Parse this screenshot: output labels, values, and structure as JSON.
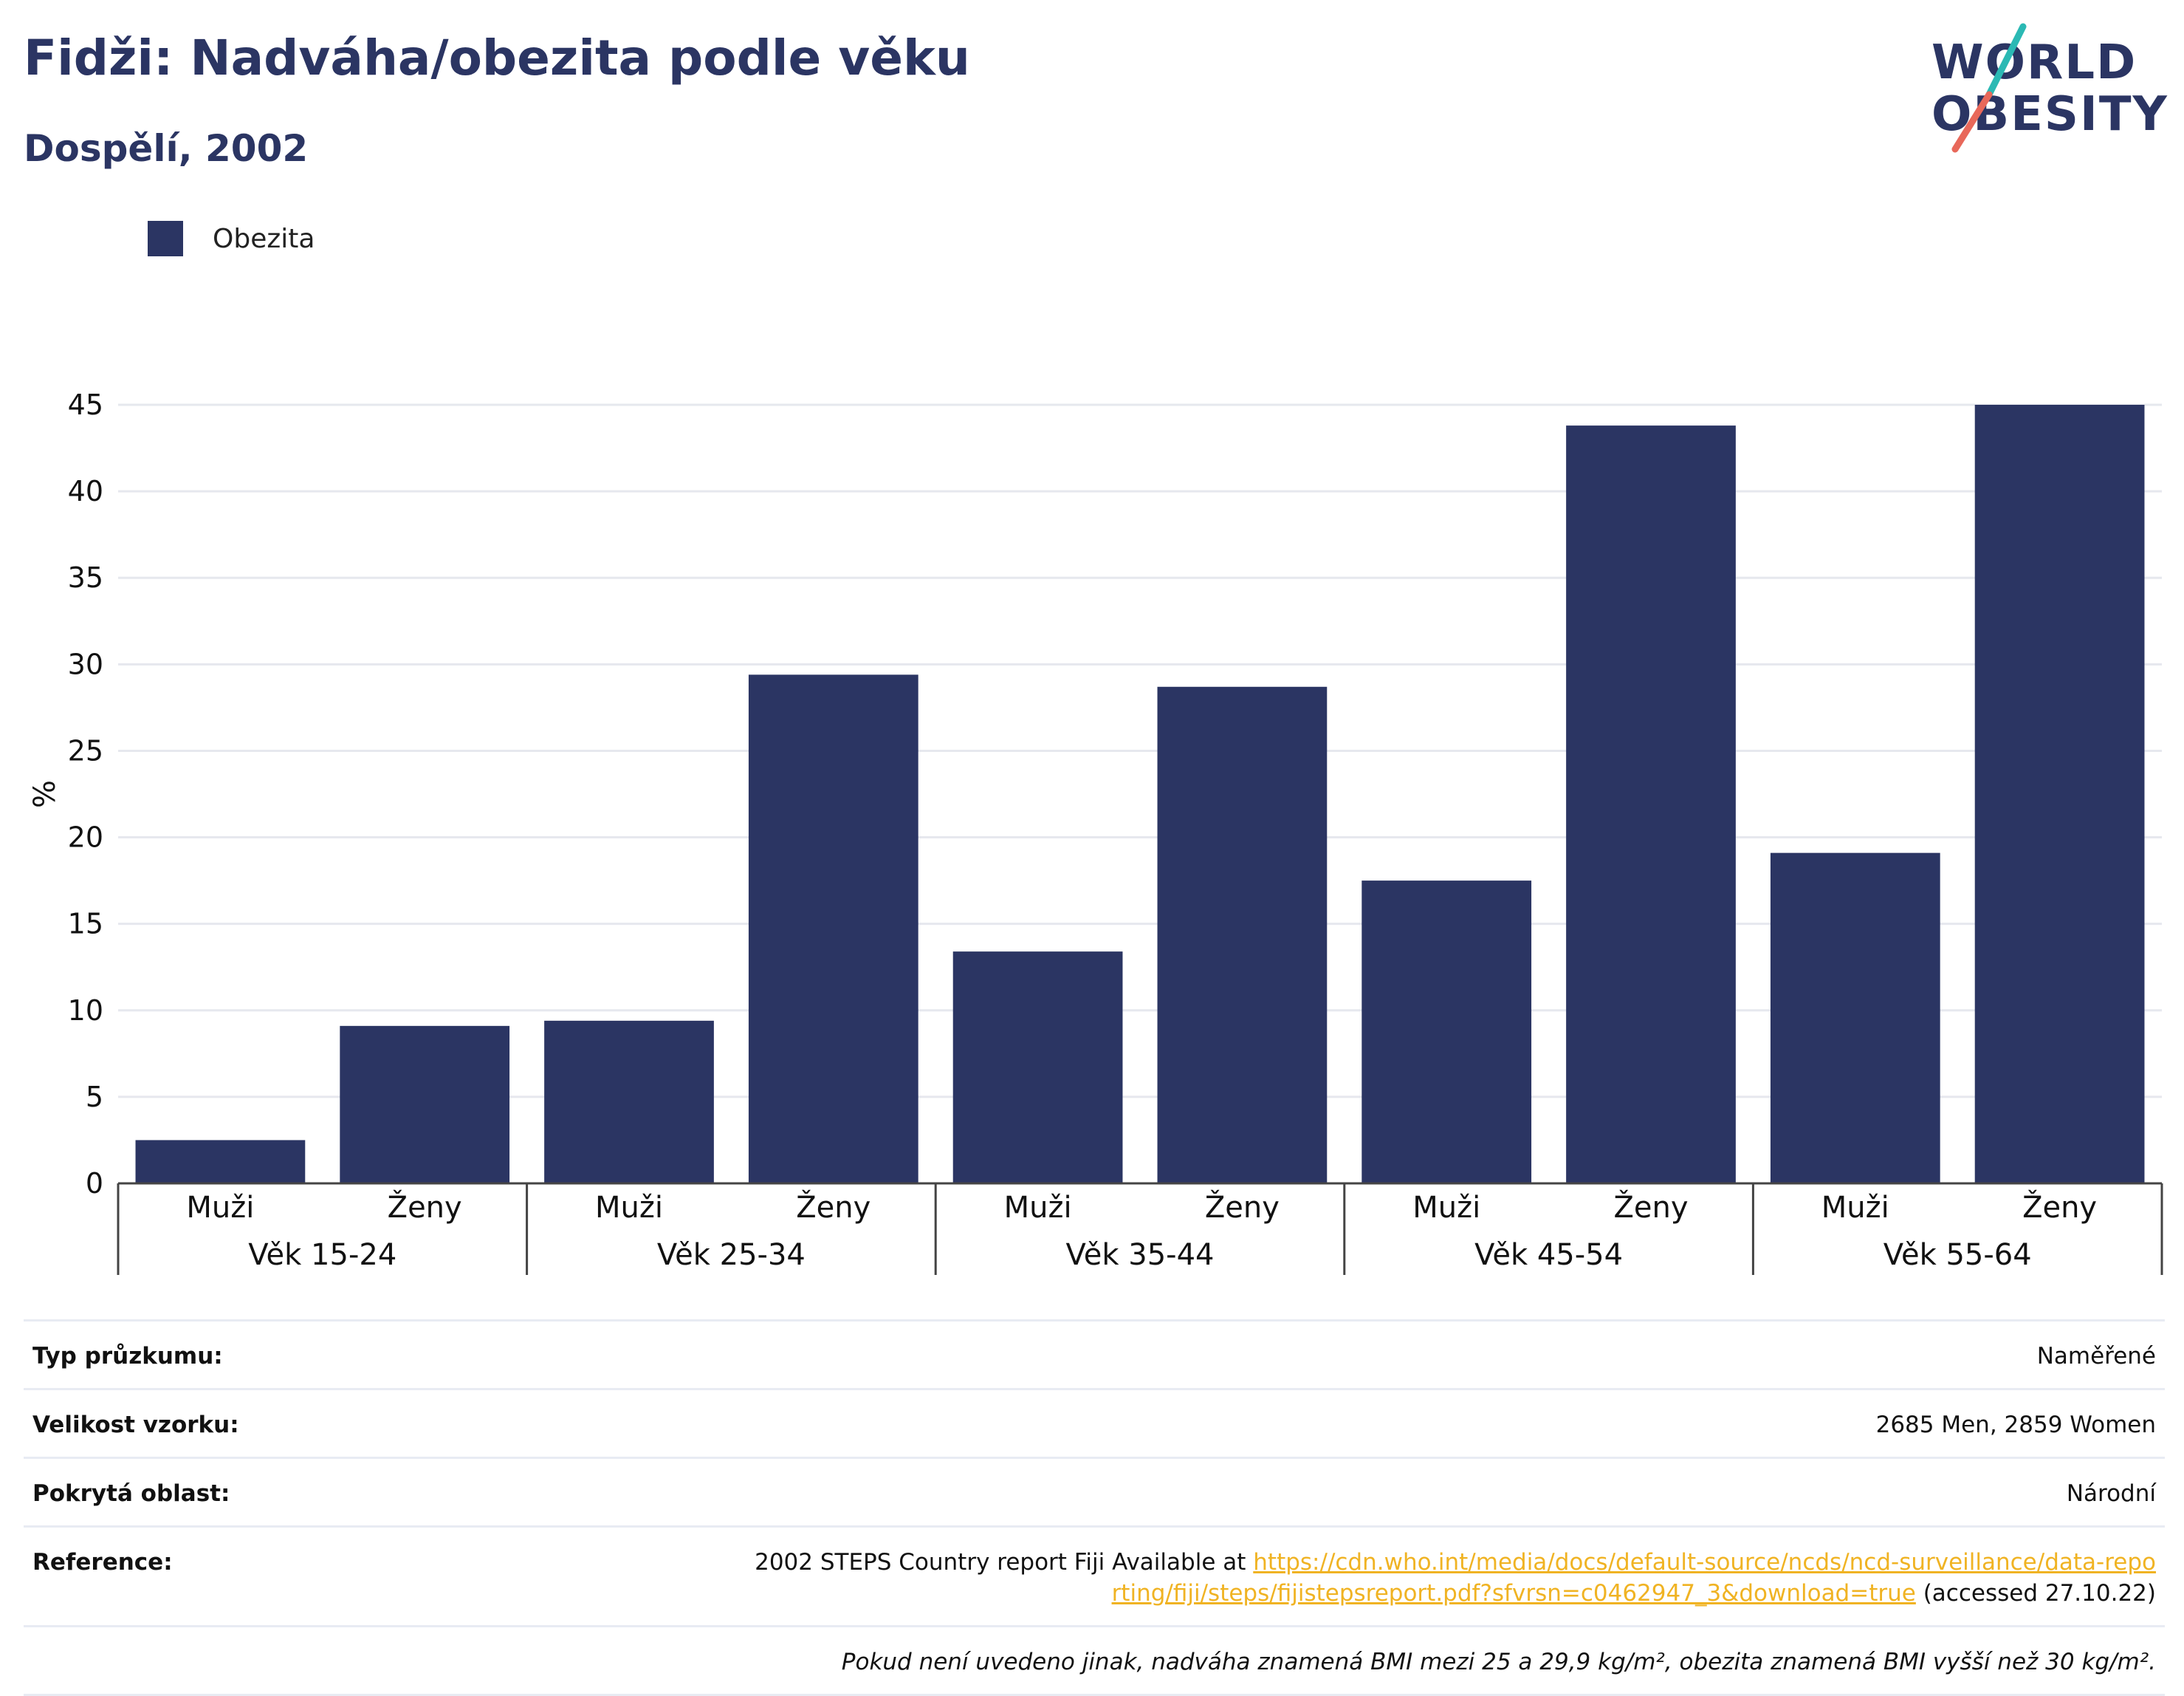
{
  "header": {
    "title": "Fidži: Nadváha/obezita podle věku",
    "subtitle": "Dospělí, 2002"
  },
  "logo": {
    "line1": "WORLD",
    "line2": "OBESITY",
    "colors": {
      "text": "#2b3563",
      "slash_top": "#2bb9b4",
      "slash_bottom": "#e8685a"
    }
  },
  "legend": {
    "label": "Obezita",
    "color": "#2b3563"
  },
  "chart_data": {
    "type": "bar",
    "ylabel": "%",
    "ylim": [
      0,
      45
    ],
    "yticks": [
      0,
      5,
      10,
      15,
      20,
      25,
      30,
      35,
      40,
      45
    ],
    "grid": true,
    "legend_position": "top-left",
    "bar_color": "#2b3563",
    "groups": [
      "Věk 15-24",
      "Věk 25-34",
      "Věk 35-44",
      "Věk 45-54",
      "Věk 55-64"
    ],
    "subcategories": [
      "Muži",
      "Ženy"
    ],
    "series": [
      {
        "name": "Obezita",
        "values": [
          2.5,
          9.1,
          9.4,
          29.4,
          13.4,
          28.7,
          17.5,
          43.8,
          19.1,
          45.0
        ]
      }
    ]
  },
  "info": {
    "rows": [
      {
        "key": "Typ průzkumu:",
        "value": "Naměřené"
      },
      {
        "key": "Velikost vzorku:",
        "value": "2685 Men, 2859 Women"
      },
      {
        "key": "Pokrytá oblast:",
        "value": "Národní"
      }
    ],
    "reference": {
      "key": "Reference:",
      "prefix": "2002 STEPS Country report Fiji Available at ",
      "link": "https://cdn.who.int/media/docs/default-source/ncds/ncd-surveillance/data-reporting/fiji/steps/fijistepsreport.pdf?sfvrsn=c0462947_3&download=true",
      "suffix": " (accessed 27.10.22)"
    },
    "note": "Pokud není uvedeno jinak, nadváha znamená BMI mezi 25 a 29,9 kg/m², obezita znamená BMI vyšší než 30 kg/m²."
  }
}
